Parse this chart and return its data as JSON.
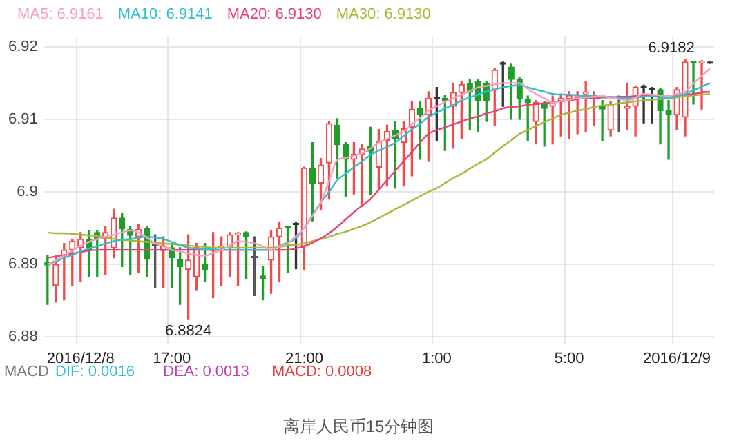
{
  "chart_data": {
    "type": "candlestick",
    "title": "离岸人民币15分钟图",
    "categories": [
      null,
      null,
      null,
      null,
      "2016/12/8",
      null,
      null,
      null,
      null,
      null,
      null,
      null,
      null,
      null,
      null,
      "17:00",
      null,
      null,
      null,
      null,
      null,
      null,
      null,
      null,
      null,
      null,
      null,
      null,
      null,
      null,
      null,
      "21:00",
      null,
      null,
      null,
      null,
      null,
      null,
      null,
      null,
      null,
      null,
      null,
      null,
      null,
      null,
      null,
      "1:00",
      null,
      null,
      null,
      null,
      null,
      null,
      null,
      null,
      null,
      null,
      null,
      null,
      null,
      null,
      null,
      "5:00",
      null,
      null,
      null,
      null,
      null,
      null,
      null,
      null,
      null,
      null,
      null,
      null,
      "2016/12/9",
      null,
      null,
      null,
      null
    ],
    "ohlc": [
      [
        6.8903,
        6.8912,
        6.8845,
        6.8899
      ],
      [
        6.8871,
        6.8912,
        6.8848,
        6.89
      ],
      [
        6.8912,
        6.8929,
        6.8851,
        6.892
      ],
      [
        6.892,
        6.8935,
        6.8871,
        6.8932
      ],
      [
        6.8923,
        6.8944,
        6.8877,
        6.8935
      ],
      [
        6.8935,
        6.8947,
        6.8883,
        6.892
      ],
      [
        6.8944,
        6.8947,
        6.8883,
        6.8935
      ],
      [
        6.8935,
        6.8952,
        6.8886,
        6.8944
      ],
      [
        6.8923,
        6.8976,
        6.8909,
        6.8964
      ],
      [
        6.8964,
        6.897,
        6.8897,
        6.8949
      ],
      [
        6.8948,
        6.8952,
        6.8886,
        6.894
      ],
      [
        6.8938,
        6.8955,
        6.8889,
        6.8948
      ],
      [
        6.895,
        6.8952,
        6.8883,
        6.8907
      ],
      [
        6.8926,
        6.8941,
        6.8868,
        6.8926
      ],
      [
        6.8919,
        6.8938,
        6.8868,
        6.8926
      ],
      [
        6.8923,
        6.8929,
        6.8868,
        6.8909
      ],
      [
        6.8907,
        6.8923,
        6.8845,
        6.8897
      ],
      [
        6.8893,
        6.8941,
        6.8824,
        6.8906
      ],
      [
        6.8883,
        6.8929,
        6.8865,
        6.8923
      ],
      [
        6.89,
        6.8929,
        6.8877,
        6.8893
      ],
      [
        6.8919,
        6.8944,
        6.8854,
        6.8923
      ],
      [
        6.8923,
        6.8938,
        6.8871,
        6.8924
      ],
      [
        6.8923,
        6.8944,
        6.8883,
        6.8941
      ],
      [
        6.8941,
        6.8944,
        6.8871,
        6.8942
      ],
      [
        6.8944,
        6.8945,
        6.888,
        6.8938
      ],
      [
        6.8909,
        6.8938,
        6.8857,
        6.8909
      ],
      [
        6.8884,
        6.8897,
        6.8851,
        6.888
      ],
      [
        6.8906,
        6.8947,
        6.886,
        6.8938
      ],
      [
        6.8938,
        6.8958,
        6.8877,
        6.895
      ],
      [
        6.8951,
        6.8951,
        6.8889,
        6.895
      ],
      [
        6.8955,
        6.8958,
        6.8894,
        6.8955
      ],
      [
        6.8925,
        6.9034,
        6.8893,
        6.9033
      ],
      [
        6.9033,
        6.9068,
        6.896,
        6.9012
      ],
      [
        6.9012,
        6.9046,
        6.8975,
        6.9037
      ],
      [
        6.904,
        6.9097,
        6.899,
        6.9094
      ],
      [
        6.9092,
        6.9101,
        6.9019,
        6.9065
      ],
      [
        6.9065,
        6.9068,
        6.8994,
        6.9045
      ],
      [
        6.9045,
        6.9068,
        6.8997,
        6.9052
      ],
      [
        6.9052,
        6.9065,
        6.898,
        6.9059
      ],
      [
        6.9063,
        6.9089,
        6.8996,
        6.9056
      ],
      [
        6.9034,
        6.9086,
        6.9005,
        6.9069
      ],
      [
        6.9071,
        6.9092,
        6.9008,
        6.9083
      ],
      [
        6.9085,
        6.9097,
        6.9005,
        6.9073
      ],
      [
        6.9068,
        6.9097,
        6.9008,
        6.9087
      ],
      [
        6.9089,
        6.9124,
        6.9022,
        6.9114
      ],
      [
        6.9115,
        6.9124,
        6.9045,
        6.9106
      ],
      [
        6.9106,
        6.9138,
        6.9042,
        6.9129
      ],
      [
        6.9129,
        6.9144,
        6.9071,
        6.9129
      ],
      [
        6.9129,
        6.9133,
        6.9057,
        6.9125
      ],
      [
        6.9118,
        6.915,
        6.906,
        6.9137
      ],
      [
        6.9137,
        6.9152,
        6.9074,
        6.9148
      ],
      [
        6.9149,
        6.9155,
        6.9086,
        6.9138
      ],
      [
        6.9152,
        6.9155,
        6.9083,
        6.9126
      ],
      [
        6.915,
        6.9152,
        6.9097,
        6.9126
      ],
      [
        6.9141,
        6.917,
        6.9092,
        6.9168
      ],
      [
        6.9176,
        6.9179,
        6.9118,
        6.9176
      ],
      [
        6.9172,
        6.9176,
        6.91,
        6.9155
      ],
      [
        6.9155,
        6.9158,
        6.91,
        6.9128
      ],
      [
        6.9128,
        6.9132,
        6.9071,
        6.9123
      ],
      [
        6.9097,
        6.9126,
        6.9066,
        6.9123
      ],
      [
        6.9121,
        6.9124,
        6.9063,
        6.9115
      ],
      [
        6.9118,
        6.9132,
        6.9066,
        6.9122
      ],
      [
        6.9125,
        6.9135,
        6.9077,
        6.9129
      ],
      [
        6.9128,
        6.9138,
        6.9074,
        6.9133
      ],
      [
        6.9129,
        6.9138,
        6.908,
        6.9133
      ],
      [
        6.9135,
        6.9152,
        6.9083,
        6.9137
      ],
      [
        6.9131,
        6.9138,
        6.9092,
        6.9132
      ],
      [
        6.9118,
        6.9126,
        6.9071,
        6.9114
      ],
      [
        6.9085,
        6.9124,
        6.9077,
        6.9121
      ],
      [
        6.9129,
        6.9132,
        6.9083,
        6.9129
      ],
      [
        6.9115,
        6.915,
        6.9086,
        6.9118
      ],
      [
        6.9118,
        6.9145,
        6.9077,
        6.9144
      ],
      [
        6.9144,
        6.9147,
        6.9095,
        6.9144
      ],
      [
        6.9141,
        6.9144,
        6.9095,
        6.9141
      ],
      [
        6.9141,
        6.9143,
        6.9066,
        6.9112
      ],
      [
        6.9112,
        6.9126,
        6.9045,
        6.9106
      ],
      [
        6.9106,
        6.9144,
        6.9086,
        6.9141
      ],
      [
        6.9103,
        6.9182,
        6.9077,
        6.9179
      ],
      [
        6.918,
        6.918,
        6.9121,
        6.9178
      ],
      [
        6.9178,
        6.9181,
        6.9114,
        6.918
      ],
      [
        6.9177,
        6.9178,
        6.9177,
        6.9177
      ]
    ],
    "colors": [
      "#1f9e2a",
      "#f04b4b",
      "#f04b4b",
      "#f04b4b",
      "#f04b4b",
      "#1f9e2a",
      "#1f9e2a",
      "#f04b4b",
      "#f04b4b",
      "#1f9e2a",
      "#1f9e2a",
      "#f04b4b",
      "#1f9e2a",
      "#555555",
      "#f04b4b",
      "#1f9e2a",
      "#1f9e2a",
      "#f04b4b",
      "#f04b4b",
      "#1f9e2a",
      "#f04b4b",
      "#f04b4b",
      "#f04b4b",
      "#f04b4b",
      "#1f9e2a",
      "#555555",
      "#1f9e2a",
      "#f04b4b",
      "#f04b4b",
      "#1f9e2a",
      "#333333",
      "#f04b4b",
      "#1f9e2a",
      "#f04b4b",
      "#f04b4b",
      "#1f9e2a",
      "#1f9e2a",
      "#f04b4b",
      "#f04b4b",
      "#1f9e2a",
      "#f04b4b",
      "#f04b4b",
      "#1f9e2a",
      "#f04b4b",
      "#f04b4b",
      "#1f9e2a",
      "#f04b4b",
      "#333333",
      "#1f9e2a",
      "#f04b4b",
      "#f04b4b",
      "#1f9e2a",
      "#1f9e2a",
      "#1f9e2a",
      "#f04b4b",
      "#333333",
      "#1f9e2a",
      "#1f9e2a",
      "#1f9e2a",
      "#f04b4b",
      "#1f9e2a",
      "#f04b4b",
      "#f04b4b",
      "#f04b4b",
      "#f04b4b",
      "#f04b4b",
      "#f04b4b",
      "#1f9e2a",
      "#f04b4b",
      "#555555",
      "#f04b4b",
      "#f04b4b",
      "#333333",
      "#333333",
      "#1f9e2a",
      "#1f9e2a",
      "#f04b4b",
      "#f04b4b",
      "#1f9e2a",
      "#f04b4b",
      "#333333"
    ],
    "series": [
      {
        "type": "line",
        "name": "MA5: 6.9161",
        "color": "#f5a0c0",
        "values": [
          6.89,
          6.8906,
          6.8912,
          6.8919,
          6.8926,
          6.8931,
          6.8935,
          6.8938,
          6.8941,
          6.8944,
          6.8947,
          6.8944,
          6.8937,
          6.8929,
          6.8925,
          6.892,
          6.8918,
          6.8915,
          6.8913,
          6.8912,
          6.8916,
          6.892,
          6.8926,
          6.8932,
          6.8931,
          6.8929,
          6.8925,
          6.892,
          6.8925,
          6.8929,
          6.8939,
          6.895,
          6.8967,
          6.8985,
          6.9015,
          6.9044,
          6.9047,
          6.905,
          6.9053,
          6.906,
          6.9068,
          6.9073,
          6.9078,
          6.9083,
          6.9093,
          6.9102,
          6.9112,
          6.9118,
          6.9124,
          6.9129,
          6.9134,
          6.9139,
          6.9144,
          6.9146,
          6.9148,
          6.915,
          6.915,
          6.915,
          6.9142,
          6.9135,
          6.9129,
          6.9123,
          6.9125,
          6.9127,
          6.9129,
          6.913,
          6.9131,
          6.9132,
          6.913,
          6.9128,
          6.9126,
          6.913,
          6.9135,
          6.9134,
          6.9133,
          6.9132,
          6.9135,
          6.9138,
          6.9149,
          6.916,
          6.917
        ]
      },
      {
        "type": "line",
        "name": "MA10: 6.9141",
        "color": "#2fbfd0",
        "values": [
          6.89,
          6.8904,
          6.8909,
          6.8913,
          6.8918,
          6.8922,
          6.8925,
          6.8929,
          6.8932,
          6.8934,
          6.8935,
          6.8937,
          6.8938,
          6.8937,
          6.8935,
          6.8931,
          6.8927,
          6.8923,
          6.8922,
          6.8921,
          6.8921,
          6.892,
          6.892,
          6.892,
          6.892,
          6.892,
          6.892,
          6.892,
          6.8926,
          6.893,
          6.8936,
          6.895,
          6.8968,
          6.8985,
          6.9,
          6.9016,
          6.9025,
          6.9034,
          6.9042,
          6.9051,
          6.9057,
          6.9062,
          6.9068,
          6.9077,
          6.9086,
          6.9094,
          6.9103,
          6.9109,
          6.9115,
          6.912,
          6.9126,
          6.913,
          6.9134,
          6.9138,
          6.9141,
          6.9144,
          6.9146,
          6.9147,
          6.9144,
          6.9141,
          6.9138,
          6.9135,
          6.9134,
          6.9134,
          6.9133,
          6.9132,
          6.9132,
          6.9131,
          6.9131,
          6.913,
          6.9129,
          6.913,
          6.9131,
          6.9132,
          6.913,
          6.9129,
          6.9132,
          6.9135,
          6.914,
          6.9145,
          6.915
        ]
      },
      {
        "type": "line",
        "name": "MA20: 6.9130",
        "color": "#e8407a",
        "values": [
          6.8909,
          6.8911,
          6.8913,
          6.8915,
          6.8917,
          6.8919,
          6.892,
          6.892,
          6.892,
          6.892,
          6.892,
          6.892,
          6.892,
          6.892,
          6.892,
          6.892,
          6.892,
          6.892,
          6.892,
          6.892,
          6.892,
          6.892,
          6.892,
          6.892,
          6.892,
          6.892,
          6.892,
          6.892,
          6.892,
          6.892,
          6.8922,
          6.8925,
          6.893,
          6.8936,
          6.8943,
          6.8952,
          6.8962,
          6.8972,
          6.8981,
          6.899,
          6.9003,
          6.9016,
          6.9029,
          6.9042,
          6.9055,
          6.9068,
          6.908,
          6.9085,
          6.9089,
          6.9093,
          6.9097,
          6.9101,
          6.9104,
          6.9108,
          6.9111,
          6.9115,
          6.9117,
          6.9118,
          6.912,
          6.9121,
          6.9122,
          6.9124,
          6.9125,
          6.9126,
          6.9128,
          6.9129,
          6.9129,
          6.913,
          6.913,
          6.9131,
          6.9131,
          6.9132,
          6.9132,
          6.9132,
          6.9132,
          6.9132,
          6.9133,
          6.9134,
          6.9135,
          6.9137,
          6.9138
        ]
      },
      {
        "type": "line",
        "name": "MA30: 6.9130",
        "color": "#a8b832",
        "values": [
          6.8944,
          6.8943,
          6.8943,
          6.8942,
          6.8941,
          6.894,
          6.8939,
          6.8937,
          6.8935,
          6.8934,
          6.8933,
          6.8932,
          6.8931,
          6.893,
          6.8929,
          6.8928,
          6.8927,
          6.8926,
          6.8925,
          6.8924,
          6.8923,
          6.8923,
          6.8923,
          6.8923,
          6.8923,
          6.8923,
          6.8923,
          6.8923,
          6.8924,
          6.8926,
          6.8927,
          6.8929,
          6.8932,
          6.8935,
          6.8938,
          6.8942,
          6.8945,
          6.8949,
          6.8953,
          6.8958,
          6.8964,
          6.897,
          6.8976,
          6.8982,
          6.8988,
          6.8994,
          6.9,
          6.9005,
          6.9012,
          6.9019,
          6.9025,
          6.9032,
          6.9039,
          6.9045,
          6.9054,
          6.9063,
          6.9071,
          6.908,
          6.9085,
          6.9091,
          6.9096,
          6.9101,
          6.9106,
          6.9109,
          6.9112,
          6.9114,
          6.9117,
          6.9119,
          6.912,
          6.9122,
          6.9123,
          6.9125,
          6.9126,
          6.9127,
          6.9128,
          6.9129,
          6.913,
          6.9132,
          6.9133,
          6.9134,
          6.9135
        ]
      }
    ],
    "ylim": [
      6.879,
      6.9215
    ],
    "yticks": [
      6.88,
      6.89,
      6.9,
      6.91,
      6.92
    ],
    "grid": true,
    "legend": "top left",
    "marker": "none",
    "annotations": [
      "6.9182",
      "6.8824",
      "MACD",
      "DIF: 0.0016",
      "DEA: 0.0013",
      "MACD: 0.0008"
    ]
  }
}
